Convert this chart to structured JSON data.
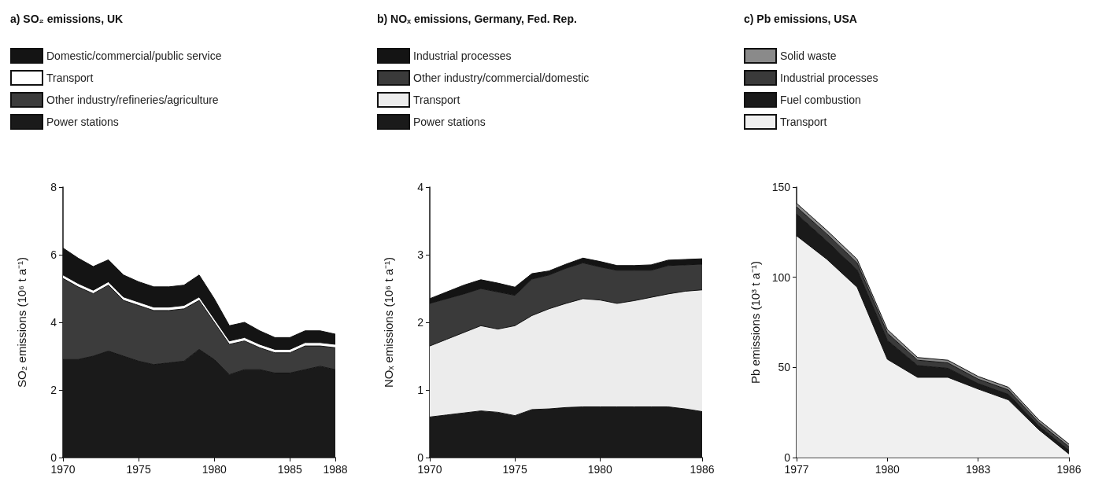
{
  "chart_data": [
    {
      "type": "area",
      "title": "a) SO₂ emissions, UK",
      "ylabel": "SO₂ emissions (10⁶ t a⁻¹)",
      "stacked": true,
      "legend": "top left",
      "grid": false,
      "x": [
        1970,
        1971,
        1972,
        1973,
        1974,
        1975,
        1976,
        1977,
        1978,
        1979,
        1980,
        1981,
        1982,
        1983,
        1984,
        1985,
        1986,
        1987,
        1988
      ],
      "xlim": [
        1970,
        1988
      ],
      "xticks": [
        1970,
        1975,
        1980,
        1985,
        1988
      ],
      "ylim": [
        0,
        8
      ],
      "yticks": [
        0,
        2,
        4,
        6,
        8
      ],
      "series": [
        {
          "name": "Power stations",
          "color": "#1a1a1a",
          "values": [
            2.9,
            2.9,
            3.0,
            3.15,
            3.0,
            2.85,
            2.75,
            2.8,
            2.85,
            3.2,
            2.9,
            2.45,
            2.6,
            2.6,
            2.5,
            2.5,
            2.6,
            2.7,
            2.6
          ]
        },
        {
          "name": "Other industry/refineries/agriculture",
          "color": "#3c3c3c",
          "values": [
            2.4,
            2.15,
            1.85,
            1.95,
            1.65,
            1.65,
            1.6,
            1.55,
            1.55,
            1.45,
            1.1,
            0.9,
            0.85,
            0.65,
            0.6,
            0.6,
            0.7,
            0.6,
            0.65
          ]
        },
        {
          "name": "Transport",
          "color": "#ffffff",
          "values": [
            0.1,
            0.1,
            0.1,
            0.1,
            0.1,
            0.1,
            0.1,
            0.1,
            0.1,
            0.1,
            0.1,
            0.1,
            0.1,
            0.1,
            0.1,
            0.1,
            0.1,
            0.1,
            0.1
          ]
        },
        {
          "name": "Domestic/commercial/public service",
          "color": "#141414",
          "values": [
            0.8,
            0.75,
            0.7,
            0.65,
            0.65,
            0.6,
            0.6,
            0.6,
            0.6,
            0.65,
            0.6,
            0.45,
            0.45,
            0.4,
            0.35,
            0.35,
            0.35,
            0.35,
            0.3
          ]
        }
      ]
    },
    {
      "type": "area",
      "title": "b) NOₓ emissions, Germany, Fed. Rep.",
      "ylabel": "NOₓ emissions (10⁶ t a⁻¹)",
      "stacked": true,
      "legend": "top left",
      "grid": false,
      "x": [
        1970,
        1971,
        1972,
        1973,
        1974,
        1975,
        1976,
        1977,
        1978,
        1979,
        1980,
        1981,
        1982,
        1983,
        1984,
        1985,
        1986
      ],
      "xlim": [
        1970,
        1986
      ],
      "xticks": [
        1970,
        1975,
        1980,
        1986
      ],
      "ylim": [
        0,
        4
      ],
      "yticks": [
        0,
        1,
        2,
        3,
        4
      ],
      "series": [
        {
          "name": "Power stations",
          "color": "#1a1a1a",
          "values": [
            0.6,
            0.63,
            0.66,
            0.69,
            0.67,
            0.62,
            0.71,
            0.72,
            0.74,
            0.75,
            0.75,
            0.75,
            0.75,
            0.75,
            0.75,
            0.72,
            0.68
          ]
        },
        {
          "name": "Transport",
          "color": "#ececec",
          "values": [
            1.05,
            1.12,
            1.19,
            1.26,
            1.23,
            1.33,
            1.39,
            1.48,
            1.54,
            1.6,
            1.58,
            1.53,
            1.57,
            1.62,
            1.67,
            1.74,
            1.8
          ]
        },
        {
          "name": "Other industry/commercial/domestic",
          "color": "#3a3a3a",
          "values": [
            0.63,
            0.6,
            0.57,
            0.55,
            0.55,
            0.45,
            0.54,
            0.5,
            0.52,
            0.53,
            0.49,
            0.49,
            0.45,
            0.4,
            0.42,
            0.39,
            0.38
          ]
        },
        {
          "name": "Industrial processes",
          "color": "#141414",
          "values": [
            0.07,
            0.1,
            0.13,
            0.13,
            0.13,
            0.12,
            0.08,
            0.06,
            0.06,
            0.07,
            0.08,
            0.07,
            0.07,
            0.08,
            0.08,
            0.08,
            0.08
          ]
        }
      ]
    },
    {
      "type": "area",
      "title": "c) Pb emissions, USA",
      "ylabel": "Pb emissions (10³ t a⁻¹)",
      "stacked": true,
      "legend": "top left",
      "grid": false,
      "x": [
        1977,
        1978,
        1979,
        1980,
        1981,
        1982,
        1983,
        1984,
        1985,
        1986
      ],
      "xlim": [
        1977,
        1986
      ],
      "xticks": [
        1977,
        1980,
        1983,
        1986
      ],
      "ylim": [
        0,
        150
      ],
      "yticks": [
        0,
        50,
        100,
        150
      ],
      "series": [
        {
          "name": "Transport",
          "color": "#f0f0f0",
          "values": [
            123,
            110,
            94.5,
            54.5,
            44.5,
            44.5,
            38,
            32,
            15.5,
            2
          ]
        },
        {
          "name": "Fuel combustion",
          "color": "#1a1a1a",
          "values": [
            12,
            10,
            9.5,
            10.5,
            6.5,
            5,
            3,
            3,
            2,
            2
          ]
        },
        {
          "name": "Industrial processes",
          "color": "#3a3a3a",
          "values": [
            4,
            4,
            4,
            4,
            3,
            3,
            2.5,
            2.5,
            2,
            2
          ]
        },
        {
          "name": "Solid waste",
          "color": "#8a8a8a",
          "values": [
            2,
            2,
            2,
            2,
            1.5,
            1.5,
            1.5,
            1.5,
            1.5,
            1.5
          ]
        }
      ]
    }
  ]
}
